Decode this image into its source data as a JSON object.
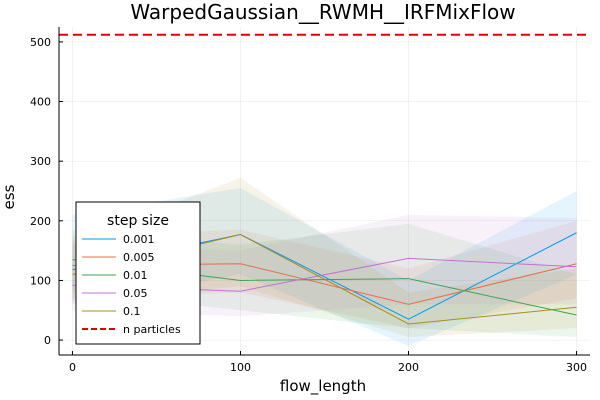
{
  "chart_data": {
    "type": "line",
    "title": "WarpedGaussian__RWMH__IRFMixFlow",
    "xlabel": "flow_length",
    "ylabel": "ess",
    "xlim": [
      -8,
      308
    ],
    "ylim": [
      -25,
      525
    ],
    "xticks": [
      0,
      100,
      200,
      300
    ],
    "yticks": [
      0,
      100,
      200,
      300,
      400,
      500
    ],
    "grid": true,
    "legend": {
      "title": "step size",
      "position": "bottom-left"
    },
    "x": [
      0,
      100,
      200,
      300
    ],
    "series": [
      {
        "name": "0.001",
        "color": "#009AFA",
        "values": [
          118,
          177,
          35,
          180
        ],
        "band_lower": [
          60,
          110,
          -10,
          110
        ],
        "band_upper": [
          210,
          255,
          100,
          250
        ]
      },
      {
        "name": "0.005",
        "color": "#E36F47",
        "values": [
          125,
          128,
          60,
          128
        ],
        "band_lower": [
          70,
          80,
          20,
          70
        ],
        "band_upper": [
          175,
          185,
          120,
          200
        ]
      },
      {
        "name": "0.01",
        "color": "#3EA44E",
        "values": [
          135,
          100,
          103,
          42
        ],
        "band_lower": [
          80,
          50,
          20,
          5
        ],
        "band_upper": [
          185,
          160,
          195,
          110
        ]
      },
      {
        "name": "0.05",
        "color": "#C371D2",
        "values": [
          92,
          82,
          137,
          123
        ],
        "band_lower": [
          50,
          40,
          60,
          60
        ],
        "band_upper": [
          160,
          150,
          210,
          205
        ]
      },
      {
        "name": "0.1",
        "color": "#AC8E18",
        "values": [
          110,
          177,
          27,
          55
        ],
        "band_lower": [
          65,
          90,
          5,
          20
        ],
        "band_upper": [
          165,
          272,
          80,
          120
        ]
      }
    ],
    "reference": {
      "name": "n particles",
      "value": 512,
      "color": "#E00000",
      "style": "dashed"
    }
  }
}
